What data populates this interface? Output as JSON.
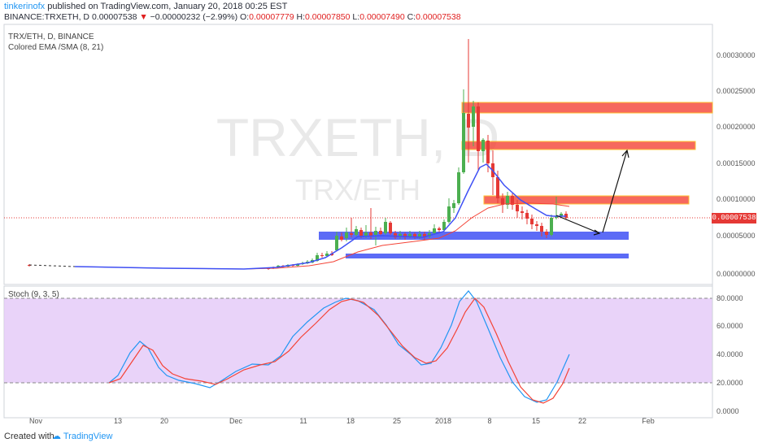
{
  "header": {
    "line1": {
      "user": "tinkerinofx",
      "published": "published on TradingView.com, January 20, 2018 00:25 EST"
    },
    "line2": {
      "symbol": "BINANCE:TRXETH, D",
      "price": "0.00007538",
      "arrow": "▼",
      "change": "−0.00000232 (−2.99%)",
      "open_label": "O:",
      "open": "0.00007779",
      "high_label": "H:",
      "high": "0.00007850",
      "low_label": "L:",
      "low": "0.00007490",
      "close_label": "C:",
      "close": "0.00007538"
    }
  },
  "main_pane": {
    "legend_symbol": "TRX/ETH, D, BINANCE",
    "legend_indicator": "Colored EMA /SMA (8, 21)",
    "watermark_symbol": "TRXETH, D",
    "watermark_pair": "TRX/ETH",
    "price_axis_labels": [
      "0.00030000",
      "0.00025000",
      "0.00020000",
      "0.00015000",
      "0.00010000",
      "0.00005000",
      "0.00000000"
    ],
    "current_price_label": "0.00007538"
  },
  "stoch_pane": {
    "legend": "Stoch (9, 3, 5)",
    "axis_labels": [
      "80.0000",
      "60.0000",
      "40.0000",
      "20.0000",
      "0.0000"
    ]
  },
  "time_axis": {
    "labels": [
      "Nov",
      "13",
      "20",
      "Dec",
      "11",
      "18",
      "25",
      "2018",
      "8",
      "15",
      "22",
      "Feb"
    ]
  },
  "footer": {
    "created_with": "Created with",
    "brand": "TradingView"
  },
  "colors": {
    "up_candle": "#4caf50",
    "down_candle": "#e53935",
    "ema": "#3f51f5",
    "sma": "#f44336",
    "resistance_zone": "#f44336",
    "support_zone": "#3f51f5",
    "stoch_band": "#e1c4f7",
    "k_line": "#2196f3",
    "d_line": "#f44336"
  }
}
